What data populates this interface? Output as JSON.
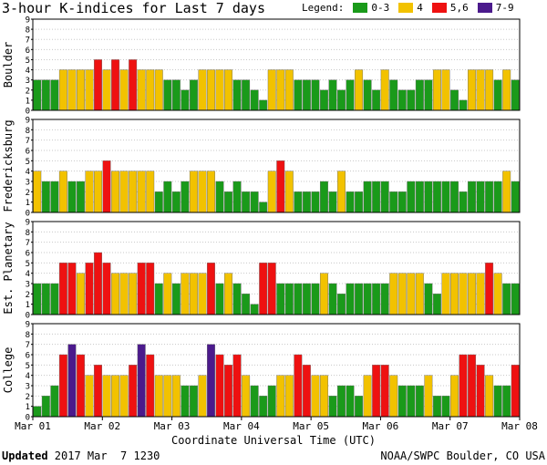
{
  "header": {
    "title": "3-hour K-indices for Last 7 days"
  },
  "legend": {
    "label": "Legend:",
    "items": [
      {
        "label": "0-3",
        "color": "#1a9a1a"
      },
      {
        "label": "4",
        "color": "#f2c200"
      },
      {
        "label": "5,6",
        "color": "#ee1111"
      },
      {
        "label": "7-9",
        "color": "#4b1a8c"
      }
    ]
  },
  "footer": {
    "updated_label": "Updated",
    "updated_value": " 2017 Mar  7 1230",
    "credit": "NOAA/SWPC Boulder, CO USA"
  },
  "chart_data": {
    "type": "bar",
    "title": "3-hour K-indices for Last 7 days",
    "xlabel": "Coordinate Universal Time (UTC)",
    "x_tick_labels": [
      "Mar 01",
      "Mar 02",
      "Mar 03",
      "Mar 04",
      "Mar 05",
      "Mar 06",
      "Mar 07",
      "Mar 08"
    ],
    "ylim": [
      0,
      9
    ],
    "y_ticks": [
      0,
      1,
      2,
      3,
      4,
      5,
      6,
      7,
      8,
      9
    ],
    "grid": true,
    "color_scale": {
      "0-3": "#1a9a1a",
      "4": "#f2c200",
      "5,6": "#ee1111",
      "7-9": "#4b1a8c"
    },
    "series": [
      {
        "name": "Boulder",
        "values": [
          3,
          3,
          3,
          4,
          4,
          4,
          4,
          5,
          4,
          5,
          4,
          5,
          4,
          4,
          4,
          3,
          3,
          2,
          3,
          4,
          4,
          4,
          4,
          3,
          3,
          2,
          1,
          4,
          4,
          4,
          3,
          3,
          3,
          2,
          3,
          2,
          3,
          4,
          3,
          2,
          4,
          3,
          2,
          2,
          3,
          3,
          4,
          4,
          2,
          1,
          4,
          4,
          4,
          3,
          4,
          3,
          3,
          4,
          4,
          3
        ]
      },
      {
        "name": "Fredericksburg",
        "values": [
          4,
          3,
          3,
          4,
          3,
          3,
          4,
          4,
          5,
          4,
          4,
          4,
          4,
          4,
          2,
          3,
          2,
          3,
          4,
          4,
          4,
          3,
          2,
          3,
          2,
          2,
          1,
          4,
          5,
          4,
          2,
          2,
          2,
          3,
          2,
          4,
          2,
          2,
          3,
          3,
          3,
          2,
          2,
          3,
          3,
          3,
          3,
          3,
          3,
          2,
          3,
          3,
          3,
          3,
          4,
          3,
          3,
          3,
          4,
          3
        ]
      },
      {
        "name": "Est. Planetary",
        "values": [
          3,
          3,
          3,
          5,
          5,
          4,
          5,
          6,
          5,
          4,
          4,
          4,
          5,
          5,
          3,
          4,
          3,
          4,
          4,
          4,
          5,
          3,
          4,
          3,
          2,
          1,
          5,
          5,
          3,
          3,
          3,
          3,
          3,
          4,
          3,
          2,
          3,
          3,
          3,
          3,
          3,
          4,
          4,
          4,
          4,
          3,
          2,
          4,
          4,
          4,
          4,
          4,
          5,
          4,
          3,
          3,
          4,
          3
        ]
      },
      {
        "name": "College",
        "values": [
          1,
          2,
          3,
          6,
          7,
          6,
          4,
          5,
          4,
          4,
          4,
          5,
          7,
          6,
          4,
          4,
          4,
          3,
          3,
          4,
          7,
          6,
          5,
          6,
          4,
          3,
          2,
          3,
          4,
          4,
          6,
          5,
          4,
          4,
          2,
          3,
          3,
          2,
          4,
          5,
          5,
          4,
          3,
          3,
          3,
          4,
          2,
          2,
          4,
          6,
          6,
          5,
          4,
          3,
          3,
          5,
          4,
          5
        ]
      }
    ]
  }
}
